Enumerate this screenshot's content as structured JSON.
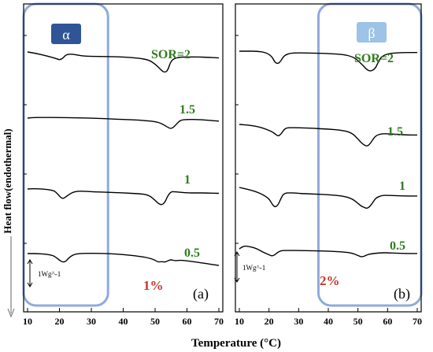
{
  "figure": {
    "ylabel": "Heat flow(endothermal)",
    "xlabel": "Temperature (°C)",
    "scale_bar_label": "1Wg^-1"
  },
  "colors": {
    "frame": "#000000",
    "trace": "#000000",
    "sor_label": "#2e7d1e",
    "concentration_label": "#c0392b",
    "highlight_box": "#8faadc",
    "alpha_badge": "#2f5597",
    "beta_badge": "#9dc3e6"
  },
  "chart_data": [
    {
      "type": "line",
      "panel_label": "(a)",
      "concentration": "1%",
      "phase_badge": "α",
      "highlight_range": [
        10,
        34
      ],
      "xlim": [
        10,
        70
      ],
      "x_ticks": [
        "10",
        "20",
        "30",
        "40",
        "50",
        "60",
        "70"
      ],
      "series": [
        {
          "name": "SOR=2",
          "x": [
            10,
            13,
            16,
            19,
            20,
            21,
            22,
            24,
            27,
            30,
            35,
            40,
            45,
            48,
            50,
            52,
            53,
            54,
            55,
            57,
            60,
            63,
            66,
            70
          ],
          "y": [
            0,
            -0.5,
            -1.2,
            -2.0,
            -2.4,
            -2.0,
            -0.8,
            -0.6,
            -1.2,
            -1.3,
            -1.4,
            -1.5,
            -1.9,
            -2.4,
            -3.6,
            -5.6,
            -6.2,
            -5.6,
            -2.5,
            -1.6,
            -1.5,
            -1.5,
            -1.6,
            -1.8
          ]
        },
        {
          "name": "1.5",
          "x": [
            10,
            12,
            15,
            20,
            25,
            30,
            35,
            40,
            45,
            50,
            52,
            54,
            55,
            56,
            57,
            58,
            60,
            63,
            66,
            70
          ],
          "y": [
            0,
            0.2,
            0.2,
            0.2,
            0.1,
            0,
            -0.2,
            -0.4,
            -0.6,
            -1.0,
            -1.6,
            -2.8,
            -3.2,
            -2.6,
            -1.5,
            -0.6,
            -0.4,
            -0.4,
            -0.6,
            -0.9
          ]
        },
        {
          "name": "1",
          "x": [
            10,
            12,
            15,
            18,
            19,
            20,
            21,
            22,
            24,
            26,
            30,
            35,
            40,
            45,
            48,
            50,
            51,
            52,
            53,
            54,
            55,
            56,
            58,
            60,
            63,
            66,
            70
          ],
          "y": [
            0,
            0.1,
            0,
            -0.4,
            -1.0,
            -2.2,
            -3.0,
            -2.4,
            -1.0,
            -0.6,
            -0.8,
            -1.0,
            -1.2,
            -1.4,
            -1.8,
            -3.4,
            -4.4,
            -4.8,
            -4.2,
            -2.0,
            -0.8,
            -0.8,
            -1.0,
            -1.2,
            -1.2,
            -1.2,
            -1.3
          ]
        },
        {
          "name": "0.5",
          "x": [
            10,
            13,
            16,
            18,
            19,
            20,
            21,
            22,
            23,
            25,
            30,
            35,
            40,
            45,
            48,
            50,
            51,
            52,
            53,
            54,
            55,
            56,
            58,
            60,
            63,
            66,
            70
          ],
          "y": [
            0,
            0,
            -0.2,
            -0.6,
            -1.2,
            -2.0,
            -2.6,
            -2.4,
            -1.2,
            0,
            0.1,
            0,
            -0.3,
            -0.8,
            -1.3,
            -2.0,
            -2.6,
            -2.4,
            -2.6,
            -2.2,
            -1.8,
            -2.2,
            -2.0,
            -2.2,
            -2.6,
            -3.0,
            -3.6
          ]
        }
      ]
    },
    {
      "type": "line",
      "panel_label": "(b)",
      "concentration": "2%",
      "phase_badge": "β",
      "highlight_range": [
        38,
        70
      ],
      "xlim": [
        10,
        70
      ],
      "x_ticks": [
        "10",
        "20",
        "30",
        "40",
        "50",
        "60",
        "70"
      ],
      "series": [
        {
          "name": "SOR=2",
          "x": [
            10,
            13,
            16,
            19,
            21,
            22,
            23,
            24,
            25,
            27,
            30,
            35,
            40,
            45,
            48,
            50,
            52,
            53,
            54,
            55,
            56,
            57,
            58,
            60,
            63,
            66,
            70
          ],
          "y": [
            0,
            0,
            0,
            -0.4,
            -1.6,
            -3.4,
            -3.8,
            -3.0,
            -1.4,
            -0.6,
            -0.5,
            -0.6,
            -0.7,
            -1.0,
            -1.6,
            -2.8,
            -4.6,
            -5.6,
            -6.0,
            -5.8,
            -5.0,
            -3.0,
            -1.6,
            -0.8,
            -0.5,
            -0.4,
            -0.4
          ]
        },
        {
          "name": "1.5",
          "x": [
            10,
            13,
            16,
            19,
            21,
            22,
            23,
            24,
            25,
            26,
            28,
            30,
            35,
            40,
            45,
            48,
            50,
            51,
            52,
            53,
            54,
            55,
            56,
            58,
            60,
            63,
            66,
            70
          ],
          "y": [
            0,
            -0.2,
            -0.6,
            -1.4,
            -2.2,
            -2.8,
            -3.6,
            -3.0,
            -1.6,
            -1.0,
            -1.0,
            -1.0,
            -1.2,
            -1.4,
            -1.8,
            -2.6,
            -4.4,
            -5.4,
            -6.2,
            -6.6,
            -6.0,
            -4.6,
            -3.4,
            -2.8,
            -2.8,
            -3.0,
            -3.2,
            -3.2
          ]
        },
        {
          "name": "1",
          "x": [
            10,
            13,
            16,
            18,
            20,
            21,
            22,
            23,
            24,
            25,
            27,
            30,
            35,
            40,
            45,
            48,
            50,
            51,
            52,
            53,
            54,
            55,
            56,
            58,
            60,
            63,
            66,
            70
          ],
          "y": [
            0,
            -0.6,
            -1.4,
            -2.2,
            -3.4,
            -5.0,
            -6.0,
            -5.4,
            -3.4,
            -1.8,
            -1.6,
            -1.8,
            -2.0,
            -2.2,
            -2.6,
            -3.4,
            -4.8,
            -5.6,
            -6.0,
            -6.4,
            -5.8,
            -4.6,
            -3.2,
            -2.4,
            -2.4,
            -2.5,
            -2.6,
            -2.6
          ]
        },
        {
          "name": "0.5",
          "x": [
            10,
            11,
            12,
            14,
            16,
            18,
            20,
            21,
            22,
            23,
            24,
            25,
            27,
            30,
            35,
            40,
            45,
            48,
            50,
            51,
            52,
            53,
            55,
            58,
            60,
            63,
            66,
            70
          ],
          "y": [
            0,
            0.6,
            0.9,
            0.6,
            0,
            -1.0,
            -1.8,
            -2.2,
            -1.8,
            -1.0,
            -0.6,
            -0.5,
            -0.5,
            -0.5,
            -0.6,
            -0.7,
            -0.9,
            -1.3,
            -2.0,
            -2.4,
            -2.3,
            -1.8,
            -1.4,
            -1.2,
            -1.2,
            -1.3,
            -1.4,
            -1.4
          ]
        }
      ]
    }
  ]
}
